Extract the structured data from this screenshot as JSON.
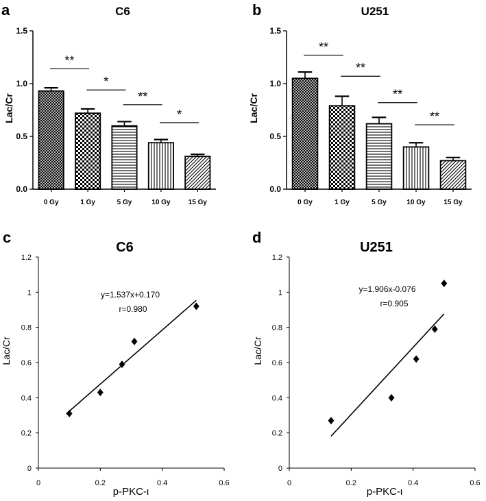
{
  "chart_data": [
    {
      "panel": "a",
      "type": "bar",
      "title": "C6",
      "ylabel": "Lac/Cr",
      "xlabel": "",
      "ylim": [
        0,
        1.5
      ],
      "yticks": [
        "0.0",
        "0.5",
        "1.0",
        "1.5"
      ],
      "categories": [
        "0 Gy",
        "1 Gy",
        "5 Gy",
        "10 Gy",
        "15 Gy"
      ],
      "values": [
        0.93,
        0.72,
        0.6,
        0.44,
        0.31
      ],
      "errors": [
        0.03,
        0.04,
        0.04,
        0.03,
        0.02
      ],
      "patterns": [
        "crosshatch",
        "checker",
        "horizontal",
        "vertical",
        "diagonal"
      ],
      "significance": [
        {
          "from": 0,
          "to": 1,
          "label": "**",
          "y": 1.14
        },
        {
          "from": 1,
          "to": 2,
          "label": "*",
          "y": 0.94
        },
        {
          "from": 2,
          "to": 3,
          "label": "**",
          "y": 0.8
        },
        {
          "from": 3,
          "to": 4,
          "label": "*",
          "y": 0.63
        }
      ]
    },
    {
      "panel": "b",
      "type": "bar",
      "title": "U251",
      "ylabel": "Lac/Cr",
      "xlabel": "",
      "ylim": [
        0,
        1.5
      ],
      "yticks": [
        "0.0",
        "0.5",
        "1.0",
        "1.5"
      ],
      "categories": [
        "0 Gy",
        "1 Gy",
        "5 Gy",
        "10 Gy",
        "15 Gy"
      ],
      "values": [
        1.05,
        0.79,
        0.62,
        0.4,
        0.27
      ],
      "errors": [
        0.06,
        0.09,
        0.06,
        0.04,
        0.03
      ],
      "patterns": [
        "crosshatch",
        "checker",
        "horizontal",
        "vertical",
        "diagonal"
      ],
      "significance": [
        {
          "from": 0,
          "to": 1,
          "label": "**",
          "y": 1.27
        },
        {
          "from": 1,
          "to": 2,
          "label": "**",
          "y": 1.07
        },
        {
          "from": 2,
          "to": 3,
          "label": "**",
          "y": 0.82
        },
        {
          "from": 3,
          "to": 4,
          "label": "**",
          "y": 0.61
        }
      ]
    },
    {
      "panel": "c",
      "type": "scatter",
      "title": "C6",
      "xlabel": "p-PKC-ι",
      "ylabel": "Lac/Cr",
      "xlim": [
        0,
        0.6
      ],
      "ylim": [
        0,
        1.2
      ],
      "xticks": [
        "0",
        "0.2",
        "0.4",
        "0.6"
      ],
      "yticks": [
        "0",
        "0.2",
        "0.4",
        "0.6",
        "0.8",
        "1",
        "1.2"
      ],
      "x": [
        0.1,
        0.2,
        0.27,
        0.31,
        0.51
      ],
      "y": [
        0.31,
        0.43,
        0.59,
        0.72,
        0.92
      ],
      "fit": {
        "slope": 1.537,
        "intercept": 0.17,
        "x_range": [
          0.09,
          0.51
        ]
      },
      "equation": "y=1.537x+0.170",
      "r_label": "r=0.980"
    },
    {
      "panel": "d",
      "type": "scatter",
      "title": "U251",
      "xlabel": "p-PKC-ι",
      "ylabel": "Lac/Cr",
      "xlim": [
        0,
        0.6
      ],
      "ylim": [
        0,
        1.2
      ],
      "xticks": [
        "0",
        "0.2",
        "0.4",
        "0.6"
      ],
      "yticks": [
        "0",
        "0.2",
        "0.4",
        "0.6",
        "0.8",
        "1",
        "1.2"
      ],
      "x": [
        0.135,
        0.33,
        0.41,
        0.47,
        0.5
      ],
      "y": [
        0.27,
        0.4,
        0.62,
        0.79,
        1.05
      ],
      "fit": {
        "slope": 1.906,
        "intercept": -0.076,
        "x_range": [
          0.135,
          0.5
        ]
      },
      "equation": "y=1.906x-0.076",
      "r_label": "r=0.905"
    }
  ]
}
